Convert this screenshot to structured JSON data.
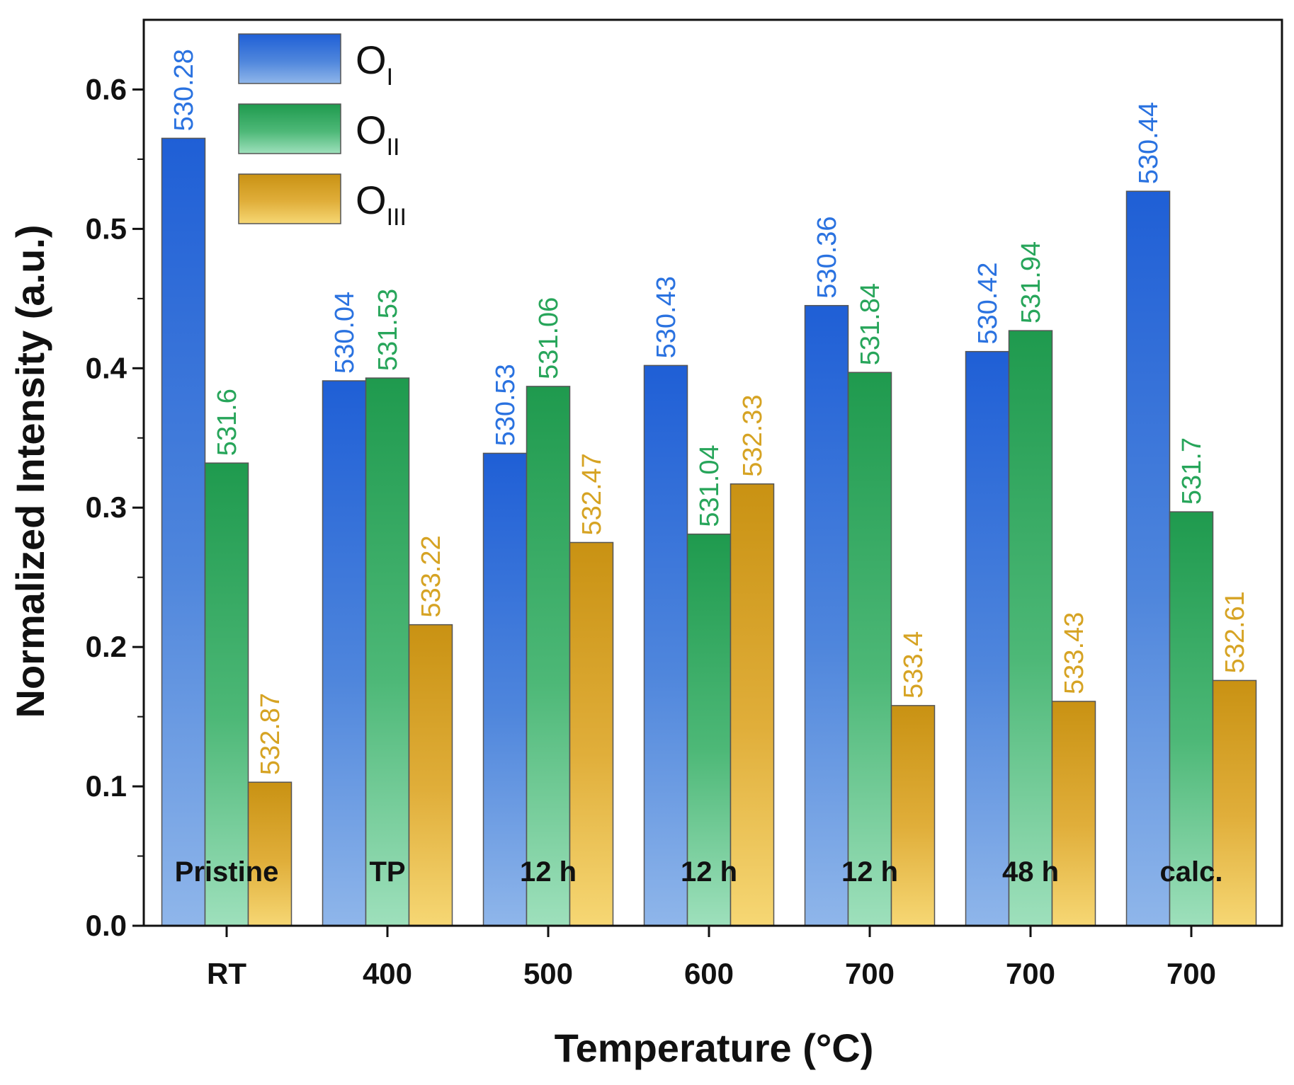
{
  "chart_data": {
    "type": "bar",
    "xlabel": "Temperature (°C)",
    "ylabel": "Normalized Intensity (a.u.)",
    "ylim": [
      0,
      0.65
    ],
    "yticks": [
      "0.0",
      "0.1",
      "0.2",
      "0.3",
      "0.4",
      "0.5",
      "0.6"
    ],
    "categories": [
      "RT",
      "400",
      "500",
      "600",
      "700",
      "700",
      "700"
    ],
    "conditions": [
      "Pristine",
      "TP",
      "12 h",
      "12 h",
      "12 h",
      "48 h",
      "calc."
    ],
    "series": [
      {
        "name": "O_I",
        "legend_main": "O",
        "legend_sub": "I",
        "color": "#2f6fd8",
        "label_color": "#2a72e0",
        "values": [
          0.565,
          0.391,
          0.339,
          0.402,
          0.445,
          0.412,
          0.527
        ],
        "labels": [
          "530.28",
          "530.04",
          "530.53",
          "530.43",
          "530.36",
          "530.42",
          "530.44"
        ]
      },
      {
        "name": "O_II",
        "legend_main": "O",
        "legend_sub": "II",
        "color": "#2fa45c",
        "label_color": "#27a55a",
        "values": [
          0.332,
          0.393,
          0.387,
          0.281,
          0.397,
          0.427,
          0.297
        ],
        "labels": [
          "531.6",
          "531.53",
          "531.06",
          "531.04",
          "531.84",
          "531.94",
          "531.7"
        ]
      },
      {
        "name": "O_III",
        "legend_main": "O",
        "legend_sub": "III",
        "color": "#d9a21f",
        "label_color": "#d6a323",
        "values": [
          0.103,
          0.216,
          0.275,
          0.317,
          0.158,
          0.161,
          0.176
        ],
        "labels": [
          "532.87",
          "533.22",
          "532.47",
          "532.33",
          "533.4",
          "533.43",
          "532.61"
        ]
      }
    ],
    "legend_position": "top-left",
    "grid": false
  }
}
